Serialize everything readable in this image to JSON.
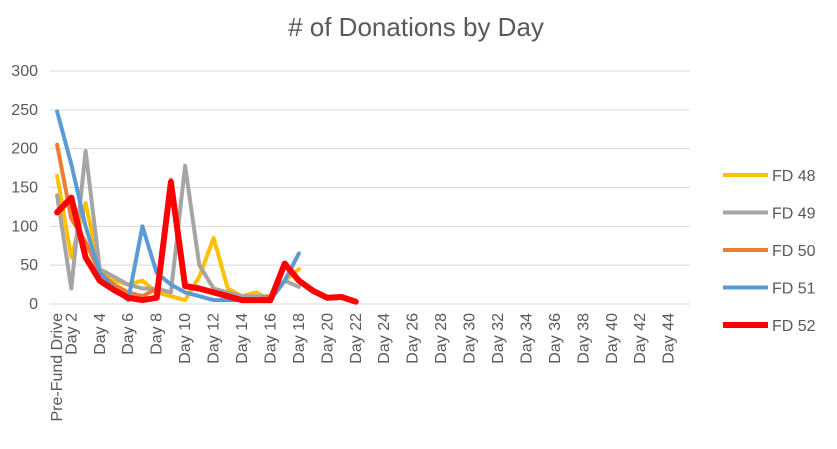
{
  "chart_data": {
    "type": "line",
    "title": "# of Donations by Day",
    "xlabel": "",
    "ylabel": "",
    "ylim": [
      0,
      300
    ],
    "yticks": [
      "0",
      "50",
      "100",
      "150",
      "200",
      "250",
      "300"
    ],
    "grid": true,
    "legend_position": "right",
    "x_tick_labels": [
      "Pre-Fund Drive",
      "Day 2",
      "Day 4",
      "Day 6",
      "Day 8",
      "Day 10",
      "Day 12",
      "Day 14",
      "Day 16",
      "Day 18",
      "Day 20",
      "Day 22",
      "Day 24",
      "Day 26",
      "Day 28",
      "Day 30",
      "Day 32",
      "Day 34",
      "Day 36",
      "Day 38",
      "Day 40",
      "Day 42",
      "Day 44"
    ],
    "series": [
      {
        "name": "FD 48",
        "color": "#FFC000",
        "values": [
          165,
          60,
          130,
          45,
          30,
          25,
          30,
          15,
          10,
          5,
          35,
          85,
          20,
          10,
          15,
          5,
          30,
          45
        ]
      },
      {
        "name": "FD 49",
        "color": "#A5A5A5",
        "values": [
          140,
          20,
          197,
          45,
          35,
          25,
          20,
          20,
          15,
          178,
          50,
          20,
          15,
          10,
          10,
          10,
          30,
          22
        ]
      },
      {
        "name": "FD 50",
        "color": "#ED7D31",
        "values": [
          205,
          110,
          80,
          40,
          25,
          15,
          10,
          20,
          160,
          25,
          20,
          15,
          10,
          5,
          5,
          10,
          30
        ]
      },
      {
        "name": "FD 51",
        "color": "#5B9BD5",
        "values": [
          248,
          180,
          100,
          40,
          20,
          5,
          100,
          40,
          25,
          15,
          10,
          5,
          5,
          5,
          5,
          5,
          30,
          65
        ]
      },
      {
        "name": "FD 52",
        "color": "#FF0000",
        "values": [
          118,
          137,
          60,
          30,
          18,
          8,
          5,
          8,
          157,
          23,
          20,
          15,
          10,
          5,
          5,
          5,
          52,
          30,
          17,
          8,
          9,
          3
        ]
      }
    ]
  }
}
